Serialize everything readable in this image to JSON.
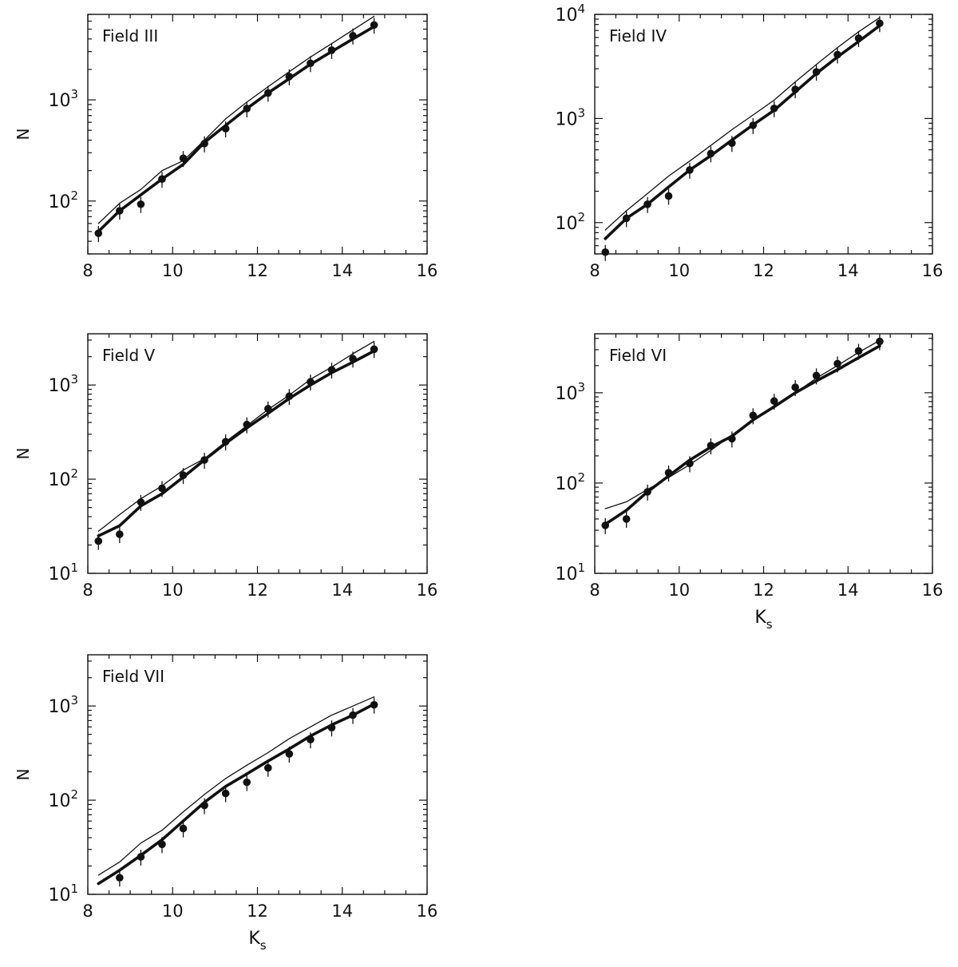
{
  "chart_data": [
    {
      "type": "line",
      "panel_label": "Field III",
      "xlabel": "",
      "ylabel": "N",
      "xlim": [
        8,
        16
      ],
      "ylim": [
        30,
        7000
      ],
      "yscale": "log",
      "x_ticks": [
        8,
        10,
        12,
        14,
        16
      ],
      "y_ticks": [
        {
          "exp": "2",
          "value": 100
        },
        {
          "exp": "3",
          "value": 1000
        }
      ],
      "series": [
        {
          "style": "thin-line",
          "x": [
            8.25,
            8.75,
            9.25,
            9.75,
            10.25,
            10.75,
            11.25,
            11.75,
            12.25,
            12.75,
            13.25,
            13.75,
            14.25,
            14.75
          ],
          "y": [
            60,
            95,
            130,
            200,
            250,
            400,
            650,
            950,
            1350,
            1900,
            2650,
            3600,
            4900,
            6700
          ]
        },
        {
          "style": "thick-line",
          "x": [
            8.25,
            8.75,
            9.25,
            9.75,
            10.25,
            10.75,
            11.25,
            11.75,
            12.25,
            12.75,
            13.25,
            13.75,
            14.25,
            14.75
          ],
          "y": [
            50,
            80,
            115,
            165,
            230,
            380,
            560,
            820,
            1170,
            1620,
            2250,
            3000,
            4000,
            5300
          ]
        },
        {
          "style": "points",
          "x": [
            8.25,
            8.75,
            9.25,
            9.75,
            10.25,
            10.75,
            11.25,
            11.75,
            12.25,
            12.75,
            13.25,
            13.75,
            14.25,
            14.75
          ],
          "y": [
            48,
            80,
            93,
            165,
            265,
            370,
            520,
            820,
            1170,
            1700,
            2300,
            3100,
            4300,
            5500
          ]
        }
      ]
    },
    {
      "type": "line",
      "panel_label": "Field IV",
      "xlabel": "",
      "ylabel": "",
      "xlim": [
        8,
        16
      ],
      "ylim": [
        50,
        10000
      ],
      "yscale": "log",
      "x_ticks": [
        8,
        10,
        12,
        14,
        16
      ],
      "y_ticks": [
        {
          "exp": "2",
          "value": 100
        },
        {
          "exp": "3",
          "value": 1000
        },
        {
          "exp": "4",
          "value": 10000
        }
      ],
      "series": [
        {
          "style": "thin-line",
          "x": [
            8.25,
            8.75,
            9.25,
            9.75,
            10.25,
            10.75,
            11.25,
            11.75,
            12.25,
            12.75,
            13.25,
            13.75,
            14.25,
            14.75
          ],
          "y": [
            85,
            130,
            190,
            280,
            390,
            550,
            780,
            1080,
            1500,
            2250,
            3300,
            4800,
            6800,
            9300
          ]
        },
        {
          "style": "thick-line",
          "x": [
            8.25,
            8.75,
            9.25,
            9.75,
            10.25,
            10.75,
            11.25,
            11.75,
            12.25,
            12.75,
            13.25,
            13.75,
            14.25,
            14.75
          ],
          "y": [
            70,
            110,
            150,
            220,
            320,
            440,
            620,
            870,
            1200,
            1800,
            2700,
            3900,
            5500,
            7800
          ]
        },
        {
          "style": "points",
          "x": [
            8.25,
            8.75,
            9.25,
            9.75,
            10.25,
            10.75,
            11.25,
            11.75,
            12.25,
            12.75,
            13.25,
            13.75,
            14.25,
            14.75
          ],
          "y": [
            52,
            110,
            150,
            180,
            320,
            460,
            580,
            860,
            1250,
            1900,
            2800,
            4100,
            5900,
            8200
          ]
        }
      ]
    },
    {
      "type": "line",
      "panel_label": "Field V",
      "xlabel": "",
      "ylabel": "N",
      "xlim": [
        8,
        16
      ],
      "ylim": [
        10,
        3500
      ],
      "yscale": "log",
      "x_ticks": [
        8,
        10,
        12,
        14,
        16
      ],
      "y_ticks": [
        {
          "exp": "1",
          "value": 10
        },
        {
          "exp": "2",
          "value": 100
        },
        {
          "exp": "3",
          "value": 1000
        }
      ],
      "series": [
        {
          "style": "thin-line",
          "x": [
            8.25,
            8.75,
            9.25,
            9.75,
            10.25,
            10.75,
            11.25,
            11.75,
            12.25,
            12.75,
            13.25,
            13.75,
            14.25,
            14.75
          ],
          "y": [
            28,
            42,
            62,
            85,
            125,
            165,
            250,
            370,
            550,
            780,
            1150,
            1550,
            2150,
            2900
          ]
        },
        {
          "style": "thick-line",
          "x": [
            8.25,
            8.75,
            9.25,
            9.75,
            10.25,
            10.75,
            11.25,
            11.75,
            12.25,
            12.75,
            13.25,
            13.75,
            14.25,
            14.75
          ],
          "y": [
            25,
            32,
            52,
            70,
            105,
            160,
            240,
            350,
            500,
            720,
            1000,
            1350,
            1750,
            2300
          ]
        },
        {
          "style": "points",
          "x": [
            8.25,
            8.75,
            9.25,
            9.75,
            10.25,
            10.75,
            11.25,
            11.75,
            12.25,
            12.75,
            13.25,
            13.75,
            14.25,
            14.75
          ],
          "y": [
            22,
            26,
            57,
            80,
            110,
            160,
            250,
            380,
            560,
            760,
            1080,
            1450,
            1900,
            2400
          ]
        }
      ]
    },
    {
      "type": "line",
      "panel_label": "Field VI",
      "xlabel": "Ks",
      "ylabel": "",
      "xlim": [
        8,
        16
      ],
      "ylim": [
        10,
        4500
      ],
      "yscale": "log",
      "x_ticks": [
        8,
        10,
        12,
        14,
        16
      ],
      "y_ticks": [
        {
          "exp": "1",
          "value": 10
        },
        {
          "exp": "2",
          "value": 100
        },
        {
          "exp": "3",
          "value": 1000
        }
      ],
      "series": [
        {
          "style": "thin-line",
          "x": [
            8.25,
            8.75,
            9.25,
            9.75,
            10.25,
            10.75,
            11.25,
            11.75,
            12.25,
            12.75,
            13.25,
            13.75,
            14.25,
            14.75
          ],
          "y": [
            52,
            62,
            85,
            115,
            160,
            230,
            340,
            500,
            720,
            1000,
            1450,
            2000,
            2800,
            3800
          ]
        },
        {
          "style": "thick-line",
          "x": [
            8.25,
            8.75,
            9.25,
            9.75,
            10.25,
            10.75,
            11.25,
            11.75,
            12.25,
            12.75,
            13.25,
            13.75,
            14.25,
            14.75
          ],
          "y": [
            35,
            50,
            80,
            120,
            180,
            250,
            330,
            500,
            700,
            1000,
            1350,
            1800,
            2450,
            3300
          ]
        },
        {
          "style": "points",
          "x": [
            8.25,
            8.75,
            9.25,
            9.75,
            10.25,
            10.75,
            11.25,
            11.75,
            12.25,
            12.75,
            13.25,
            13.75,
            14.25,
            14.75
          ],
          "y": [
            34,
            40,
            80,
            130,
            165,
            260,
            310,
            560,
            810,
            1150,
            1550,
            2100,
            2900,
            3700
          ]
        }
      ]
    },
    {
      "type": "line",
      "panel_label": "Field VII",
      "xlabel": "Ks",
      "ylabel": "N",
      "xlim": [
        8,
        16
      ],
      "ylim": [
        10,
        3500
      ],
      "yscale": "log",
      "x_ticks": [
        8,
        10,
        12,
        14,
        16
      ],
      "y_ticks": [
        {
          "exp": "1",
          "value": 10
        },
        {
          "exp": "2",
          "value": 100
        },
        {
          "exp": "3",
          "value": 1000
        }
      ],
      "series": [
        {
          "style": "thin-line",
          "x": [
            8.25,
            8.75,
            9.25,
            9.75,
            10.25,
            10.75,
            11.25,
            11.75,
            12.25,
            12.75,
            13.25,
            13.75,
            14.25,
            14.75
          ],
          "y": [
            16,
            22,
            35,
            48,
            75,
            115,
            170,
            235,
            320,
            450,
            600,
            800,
            1000,
            1250
          ]
        },
        {
          "style": "thick-line",
          "x": [
            8.25,
            8.75,
            9.25,
            9.75,
            10.25,
            10.75,
            11.25,
            11.75,
            12.25,
            12.75,
            13.25,
            13.75,
            14.25,
            14.75
          ],
          "y": [
            13,
            18,
            26,
            38,
            60,
            95,
            140,
            190,
            260,
            350,
            480,
            630,
            800,
            1050
          ]
        },
        {
          "style": "points",
          "x": [
            8.75,
            9.25,
            9.75,
            10.25,
            10.75,
            11.25,
            11.75,
            12.25,
            12.75,
            13.25,
            13.75,
            14.25,
            14.75
          ],
          "y": [
            15,
            25,
            34,
            50,
            88,
            118,
            155,
            220,
            310,
            440,
            590,
            800,
            1030
          ]
        }
      ]
    }
  ]
}
